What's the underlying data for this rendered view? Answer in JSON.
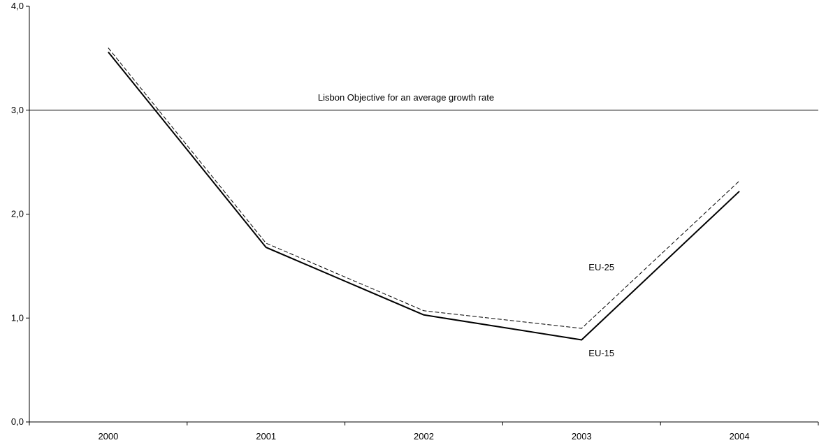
{
  "chart_data": {
    "type": "line",
    "categories": [
      "2000",
      "2001",
      "2002",
      "2003",
      "2004"
    ],
    "y_tick_labels": [
      "0,0",
      "1,0",
      "2,0",
      "3,0",
      "4,0"
    ],
    "ylim": [
      0,
      4
    ],
    "series": [
      {
        "name": "EU-15",
        "values": [
          3.56,
          1.68,
          1.03,
          0.79,
          2.22
        ],
        "style": "solid",
        "color": "#000000"
      },
      {
        "name": "EU-25",
        "values": [
          3.6,
          1.72,
          1.07,
          0.9,
          2.32
        ],
        "style": "dashed",
        "color": "#000000"
      }
    ],
    "reference_line": {
      "value": 3.0,
      "label": "Lisbon Objective for an average growth rate"
    },
    "grid": false,
    "legend": "none (series labeled inline)"
  }
}
